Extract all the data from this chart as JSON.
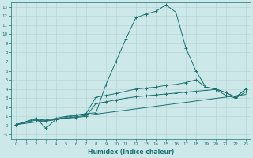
{
  "xlabel": "Humidex (Indice chaleur)",
  "background_color": "#cce8e8",
  "grid_color": "#b8d4d4",
  "line_color": "#1a7070",
  "xlim": [
    -0.5,
    23.5
  ],
  "ylim": [
    -1.5,
    13.5
  ],
  "xticks": [
    0,
    1,
    2,
    3,
    4,
    5,
    6,
    7,
    8,
    9,
    10,
    11,
    12,
    13,
    14,
    15,
    16,
    17,
    18,
    19,
    20,
    21,
    22,
    23
  ],
  "yticks": [
    -1,
    0,
    1,
    2,
    3,
    4,
    5,
    6,
    7,
    8,
    9,
    10,
    11,
    12,
    13
  ],
  "line1": [
    [
      0,
      0.1
    ],
    [
      2,
      0.8
    ],
    [
      3,
      -0.3
    ],
    [
      4,
      0.7
    ],
    [
      5,
      0.9
    ],
    [
      6,
      1.1
    ],
    [
      7,
      1.3
    ],
    [
      8,
      1.4
    ],
    [
      9,
      4.5
    ],
    [
      10,
      7.0
    ],
    [
      11,
      9.5
    ],
    [
      12,
      11.8
    ],
    [
      13,
      12.2
    ],
    [
      14,
      12.5
    ],
    [
      15,
      13.2
    ],
    [
      16,
      12.4
    ],
    [
      17,
      8.5
    ],
    [
      18,
      6.0
    ],
    [
      19,
      4.2
    ],
    [
      20,
      4.0
    ],
    [
      21,
      3.6
    ],
    [
      22,
      3.1
    ],
    [
      23,
      4.0
    ]
  ],
  "line2": [
    [
      0,
      0.1
    ],
    [
      2,
      0.7
    ],
    [
      3,
      0.6
    ],
    [
      4,
      0.8
    ],
    [
      5,
      1.0
    ],
    [
      6,
      1.15
    ],
    [
      7,
      1.3
    ],
    [
      8,
      3.1
    ],
    [
      9,
      3.3
    ],
    [
      10,
      3.5
    ],
    [
      11,
      3.75
    ],
    [
      12,
      4.0
    ],
    [
      13,
      4.1
    ],
    [
      14,
      4.2
    ],
    [
      15,
      4.4
    ],
    [
      16,
      4.5
    ],
    [
      17,
      4.7
    ],
    [
      18,
      5.0
    ],
    [
      19,
      4.2
    ],
    [
      20,
      4.0
    ],
    [
      21,
      3.6
    ],
    [
      22,
      3.1
    ],
    [
      23,
      4.0
    ]
  ],
  "line3": [
    [
      0,
      0.1
    ],
    [
      23,
      3.4
    ]
  ],
  "line4": [
    [
      0,
      0.1
    ],
    [
      2,
      0.6
    ],
    [
      3,
      0.5
    ],
    [
      4,
      0.65
    ],
    [
      5,
      0.8
    ],
    [
      6,
      0.9
    ],
    [
      7,
      1.0
    ],
    [
      8,
      2.4
    ],
    [
      9,
      2.6
    ],
    [
      10,
      2.8
    ],
    [
      11,
      3.0
    ],
    [
      12,
      3.15
    ],
    [
      13,
      3.25
    ],
    [
      14,
      3.35
    ],
    [
      15,
      3.45
    ],
    [
      16,
      3.55
    ],
    [
      17,
      3.65
    ],
    [
      18,
      3.75
    ],
    [
      19,
      3.85
    ],
    [
      20,
      3.95
    ],
    [
      21,
      3.3
    ],
    [
      22,
      3.0
    ],
    [
      23,
      3.7
    ]
  ]
}
